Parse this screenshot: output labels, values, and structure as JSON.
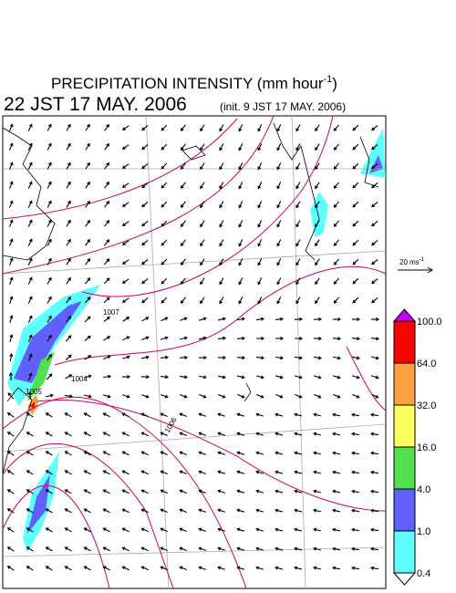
{
  "header": {
    "title_main": "PRECIPITATION INTENSITY (mm hour",
    "title_sup": "-1",
    "title_end": ")",
    "time": "22 JST 17 MAY. 2006",
    "init": "(init. 9 JST 17 MAY. 2006)"
  },
  "map": {
    "contour_labels": [
      "1007",
      "1004",
      "1006",
      "1005"
    ],
    "wind_scale": {
      "label": "20 ms",
      "sup": "-1"
    }
  },
  "colorbar": {
    "levels": [
      {
        "value": 100,
        "label": "100.0"
      },
      {
        "value": 64,
        "label": "64.0"
      },
      {
        "value": 32,
        "label": "32.0"
      },
      {
        "value": 16,
        "label": "16.0"
      },
      {
        "value": 4,
        "label": "4.0"
      },
      {
        "value": 1,
        "label": "1.0"
      },
      {
        "value": 0.4,
        "label": "0.4"
      }
    ],
    "colors": [
      "#ff0000",
      "#ffa040",
      "#ffff60",
      "#50e050",
      "#6060ff",
      "#60ffff"
    ],
    "over_color": "#c000ff",
    "under_color": "#ffffff"
  }
}
